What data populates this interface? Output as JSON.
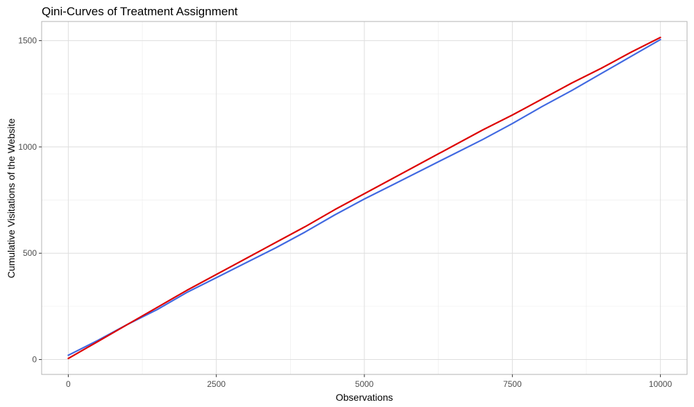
{
  "chart_data": {
    "type": "line",
    "title": "Qini-Curves of Treatment Assignment",
    "xlabel": "Observations",
    "ylabel": "Cumulative Visitations of the Website",
    "xlim": [
      -450,
      10450
    ],
    "ylim": [
      -70,
      1590
    ],
    "x_ticks": [
      0,
      2500,
      5000,
      7500,
      10000
    ],
    "x_tick_labels": [
      "0",
      "2500",
      "5000",
      "7500",
      "10000"
    ],
    "y_ticks": [
      0,
      500,
      1000,
      1500
    ],
    "y_tick_labels": [
      "0",
      "500",
      "1000",
      "1500"
    ],
    "grid": true,
    "legend": "none",
    "series": [
      {
        "color": "#4169e1",
        "x": [
          0,
          500,
          1000,
          1500,
          2000,
          2500,
          3000,
          3500,
          4000,
          4500,
          5000,
          5500,
          6000,
          6500,
          7000,
          7500,
          8000,
          8500,
          9000,
          9500,
          10000
        ],
        "y": [
          20,
          90,
          165,
          235,
          315,
          385,
          455,
          525,
          600,
          680,
          755,
          825,
          895,
          965,
          1035,
          1110,
          1190,
          1265,
          1345,
          1425,
          1505
        ]
      },
      {
        "color": "#dd0000",
        "x": [
          0,
          500,
          1000,
          1500,
          2000,
          2500,
          3000,
          3500,
          4000,
          4500,
          5000,
          5500,
          6000,
          6500,
          7000,
          7500,
          8000,
          8500,
          9000,
          9500,
          10000
        ],
        "y": [
          5,
          85,
          165,
          245,
          325,
          400,
          475,
          550,
          625,
          705,
          780,
          855,
          930,
          1005,
          1080,
          1150,
          1225,
          1300,
          1370,
          1445,
          1515
        ]
      }
    ]
  }
}
